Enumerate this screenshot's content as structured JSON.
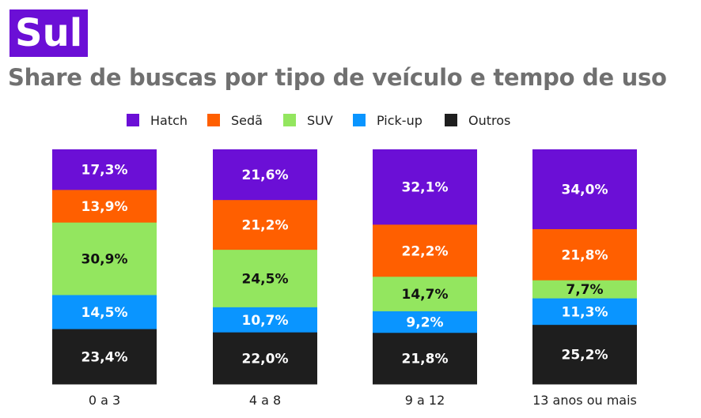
{
  "header": {
    "region": "Sul",
    "title": "Share de buscas por tipo de veículo e tempo de uso"
  },
  "colors": {
    "Hatch": "#6b0fd6",
    "Sedã": "#ff5f00",
    "SUV": "#93e65f",
    "Pick-up": "#0a95ff",
    "Outros": "#1e1e1e"
  },
  "chart_data": {
    "type": "bar",
    "stacked": true,
    "percent_stacked": true,
    "categories": [
      "0 a 3",
      "4 a 8",
      "9 a 12",
      "13 anos ou mais"
    ],
    "series": [
      {
        "name": "Hatch",
        "values": [
          17.3,
          21.6,
          32.1,
          34.0
        ],
        "labels": [
          "17,3%",
          "21,6%",
          "32,1%",
          "34,0%"
        ]
      },
      {
        "name": "Sedã",
        "values": [
          13.9,
          21.2,
          22.2,
          21.8
        ],
        "labels": [
          "13,9%",
          "21,2%",
          "22,2%",
          "21,8%"
        ]
      },
      {
        "name": "SUV",
        "values": [
          30.9,
          24.5,
          14.7,
          7.7
        ],
        "labels": [
          "30,9%",
          "24,5%",
          "14,7%",
          "7,7%"
        ]
      },
      {
        "name": "Pick-up",
        "values": [
          14.5,
          10.7,
          9.2,
          11.3
        ],
        "labels": [
          "14,5%",
          "10,7%",
          "9,2%",
          "11,3%"
        ]
      },
      {
        "name": "Outros",
        "values": [
          23.4,
          22.0,
          21.8,
          25.2
        ],
        "labels": [
          "23,4%",
          "22,0%",
          "21,8%",
          "25,2%"
        ]
      }
    ],
    "legend": "top",
    "grid": false,
    "xlabel": "",
    "ylabel": ""
  }
}
